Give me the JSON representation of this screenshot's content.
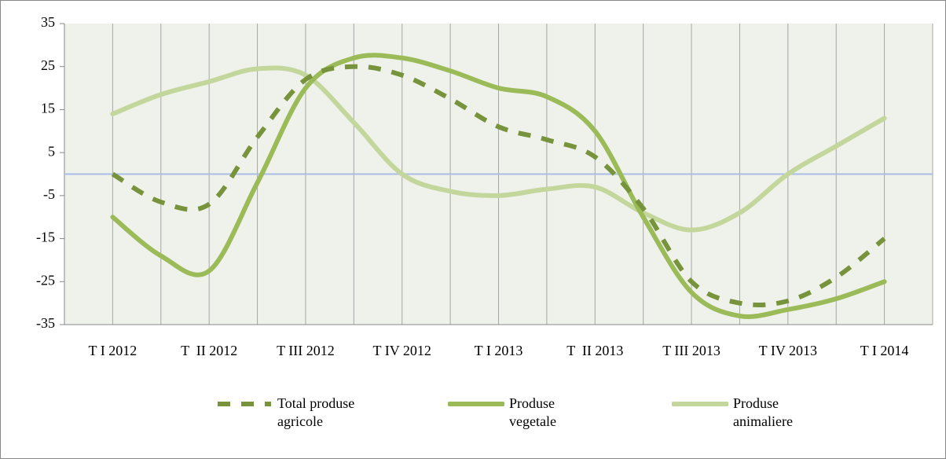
{
  "chart_data": {
    "type": "line",
    "categories": [
      "T I 2012",
      null,
      "T  II 2012",
      null,
      "T III 2012",
      null,
      "T IV 2012",
      null,
      "T I 2013",
      null,
      "T  II 2013",
      null,
      "T III 2013",
      null,
      "T IV 2013",
      null,
      "T I 2014"
    ],
    "series": [
      {
        "name": "Total produse agricole",
        "color": "#77933c",
        "dashed": true,
        "values": [
          0,
          -6.5,
          -7,
          8.6,
          22,
          25,
          23,
          17.5,
          11,
          8,
          4,
          -8,
          -25,
          -30,
          -29.5,
          -24,
          -15
        ]
      },
      {
        "name": "Produse vegetale",
        "color": "#9bbb59",
        "dashed": false,
        "values": [
          -10,
          -19,
          -22.5,
          -2,
          20,
          27,
          27,
          24,
          20,
          18,
          10,
          -10,
          -27.5,
          -33,
          -31.5,
          -29,
          -25
        ]
      },
      {
        "name": "Produse animaliere",
        "color": "#c3d69b",
        "dashed": false,
        "values": [
          14,
          18.5,
          21.5,
          24.5,
          23,
          12,
          0,
          -4,
          -5,
          -3.5,
          -3,
          -9,
          -13,
          -9,
          0,
          6.5,
          13
        ]
      }
    ],
    "ylim": [
      -35,
      35
    ],
    "yticks": [
      35,
      25,
      15,
      5,
      -5,
      -15,
      -25,
      -35
    ],
    "grid": true,
    "legend": "bottom"
  }
}
